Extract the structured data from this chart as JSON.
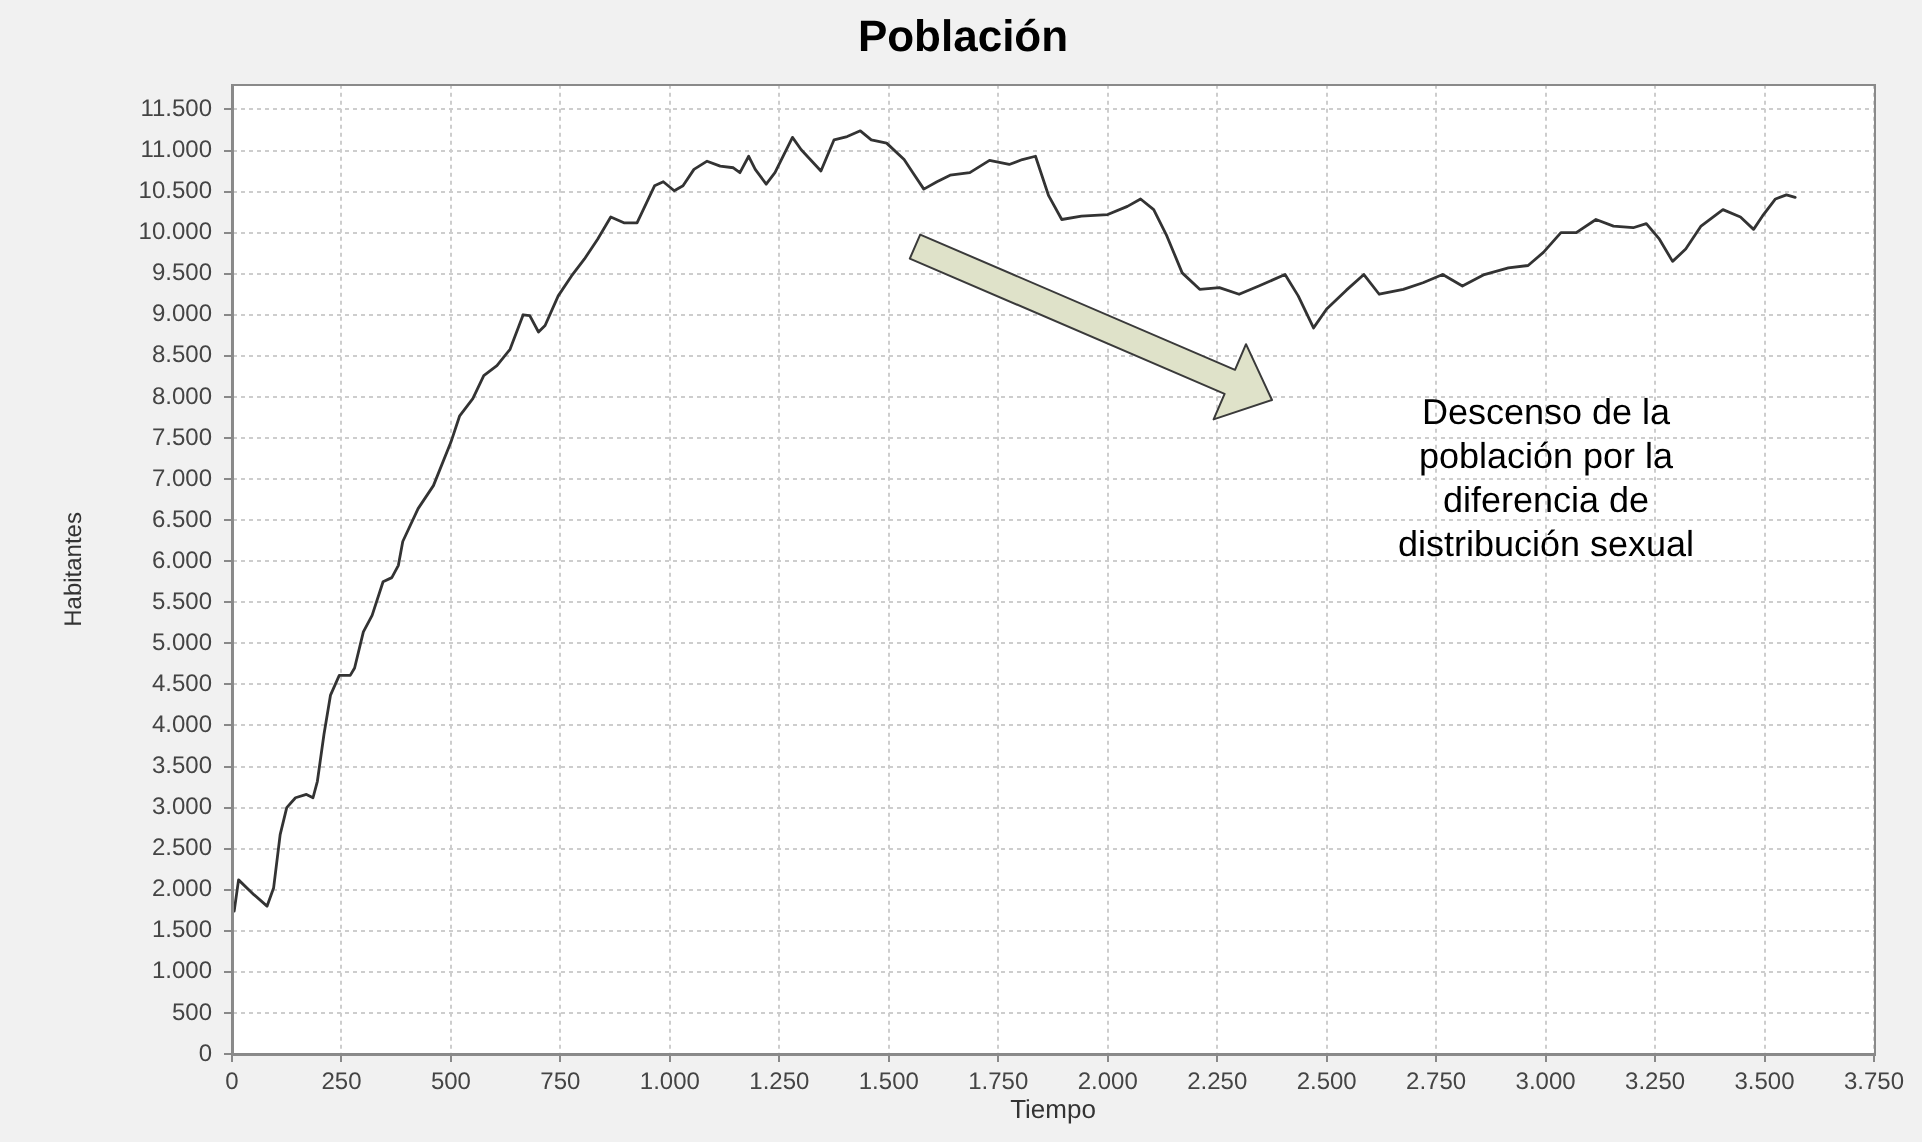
{
  "chart_data": {
    "type": "line",
    "title": "Población",
    "xlabel": "Tiempo",
    "ylabel": "Habitantes",
    "annotations": [
      "Descenso de la\npoblación por la\ndiferencia de\ndistribución sexual"
    ],
    "color": "#333333",
    "grid": true,
    "xlim": [
      0,
      3750
    ],
    "xticks": [
      0,
      250,
      500,
      750,
      {
        "value": 1000,
        "label": "1.000"
      },
      {
        "value": 1250,
        "label": "1.250"
      },
      {
        "value": 1500,
        "label": "1.500"
      },
      {
        "value": 1750,
        "label": "1.750"
      },
      {
        "value": 2000,
        "label": "2.000"
      },
      {
        "value": 2250,
        "label": "2.250"
      },
      {
        "value": 2500,
        "label": "2.500"
      },
      {
        "value": 2750,
        "label": "2.750"
      },
      {
        "value": 3000,
        "label": "3.000"
      },
      {
        "value": 3250,
        "label": "3.250"
      },
      {
        "value": 3500,
        "label": "3.500"
      },
      {
        "value": 3750,
        "label": "3.750"
      }
    ],
    "ylim": [
      0,
      11800
    ],
    "yticks": [
      0,
      500,
      {
        "value": 1000,
        "label": "1.000"
      },
      {
        "value": 1500,
        "label": "1.500"
      },
      {
        "value": 2000,
        "label": "2.000"
      },
      {
        "value": 2500,
        "label": "2.500"
      },
      {
        "value": 3000,
        "label": "3.000"
      },
      {
        "value": 3500,
        "label": "3.500"
      },
      {
        "value": 4000,
        "label": "4.000"
      },
      {
        "value": 4500,
        "label": "4.500"
      },
      {
        "value": 5000,
        "label": "5.000"
      },
      {
        "value": 5500,
        "label": "5.500"
      },
      {
        "value": 6000,
        "label": "6.000"
      },
      {
        "value": 6500,
        "label": "6.500"
      },
      {
        "value": 7000,
        "label": "7.000"
      },
      {
        "value": 7500,
        "label": "7.500"
      },
      {
        "value": 8000,
        "label": "8.000"
      },
      {
        "value": 8500,
        "label": "8.500"
      },
      {
        "value": 9000,
        "label": "9.000"
      },
      {
        "value": 9500,
        "label": "9.500"
      },
      {
        "value": 10000,
        "label": "10.000"
      },
      {
        "value": 10500,
        "label": "10.500"
      },
      {
        "value": 11000,
        "label": "11.000"
      },
      {
        "value": 11500,
        "label": "11.500"
      }
    ],
    "x": [
      5,
      15,
      50,
      80,
      95,
      110,
      125,
      145,
      170,
      185,
      195,
      210,
      225,
      245,
      270,
      280,
      300,
      320,
      345,
      365,
      380,
      390,
      425,
      460,
      500,
      520,
      550,
      575,
      605,
      635,
      665,
      680,
      700,
      715,
      745,
      775,
      805,
      835,
      865,
      895,
      925,
      965,
      985,
      1010,
      1030,
      1055,
      1085,
      1115,
      1145,
      1160,
      1180,
      1195,
      1220,
      1240,
      1280,
      1300,
      1345,
      1375,
      1405,
      1435,
      1460,
      1495,
      1535,
      1555,
      1580,
      1610,
      1640,
      1685,
      1730,
      1775,
      1805,
      1835,
      1865,
      1895,
      1940,
      2000,
      2045,
      2075,
      2105,
      2135,
      2170,
      2210,
      2255,
      2300,
      2345,
      2405,
      2435,
      2470,
      2500,
      2545,
      2585,
      2620,
      2675,
      2720,
      2765,
      2810,
      2860,
      2915,
      2960,
      2995,
      3035,
      3070,
      3115,
      3155,
      3200,
      3230,
      3260,
      3290,
      3320,
      3355,
      3405,
      3445,
      3475,
      3495,
      3525,
      3550,
      3570
    ],
    "values": [
      1740,
      2120,
      1940,
      1800,
      2020,
      2670,
      3000,
      3120,
      3160,
      3120,
      3320,
      3890,
      4370,
      4610,
      4610,
      4700,
      5140,
      5340,
      5750,
      5800,
      5950,
      6240,
      6640,
      6920,
      7450,
      7770,
      7980,
      8260,
      8380,
      8580,
      9000,
      8990,
      8790,
      8870,
      9230,
      9470,
      9680,
      9920,
      10190,
      10120,
      10120,
      10570,
      10620,
      10510,
      10570,
      10770,
      10870,
      10810,
      10790,
      10730,
      10930,
      10770,
      10590,
      10730,
      11160,
      11010,
      10750,
      11130,
      11170,
      11240,
      11130,
      11090,
      10890,
      10730,
      10530,
      10620,
      10700,
      10730,
      10880,
      10830,
      10890,
      10930,
      10450,
      10160,
      10200,
      10220,
      10320,
      10410,
      10280,
      9960,
      9510,
      9310,
      9330,
      9250,
      9350,
      9490,
      9230,
      8840,
      9070,
      9300,
      9490,
      9250,
      9310,
      9390,
      9490,
      9350,
      9490,
      9570,
      9600,
      9760,
      10000,
      10000,
      10160,
      10080,
      10060,
      10110,
      9920,
      9650,
      9800,
      10080,
      10280,
      10190,
      10040,
      10200,
      10410,
      10460,
      10430
    ]
  }
}
